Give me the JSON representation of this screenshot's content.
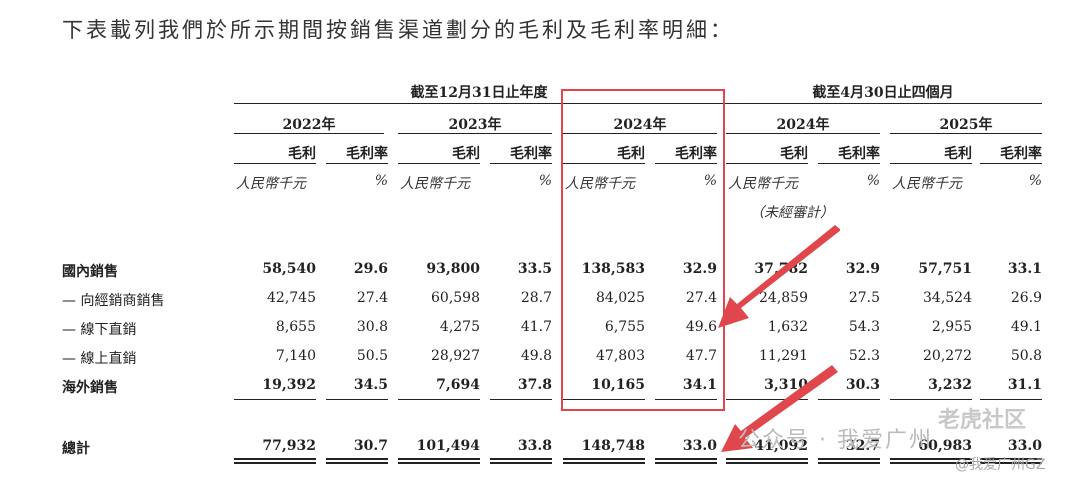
{
  "intro_text": "下表載列我們於所示期間按銷售渠道劃分的毛利及毛利率明細：",
  "group_headers": {
    "annual": "截至12月31日止年度",
    "four_month": "截至4月30日止四個月"
  },
  "years": [
    "2022年",
    "2023年",
    "2024年",
    "2024年",
    "2025年"
  ],
  "col_headers": {
    "profit": "毛利",
    "margin": "毛利率"
  },
  "units": {
    "currency": "人民幣千元",
    "percent": "%"
  },
  "unaudited_note": "（未經審計）",
  "rows": [
    {
      "label": "國內銷售",
      "values": [
        "58,540",
        "29.6",
        "93,800",
        "33.5",
        "138,583",
        "32.9",
        "37,782",
        "32.9",
        "57,751",
        "33.1"
      ]
    },
    {
      "label": "— 向經銷商銷售",
      "values": [
        "42,745",
        "27.4",
        "60,598",
        "28.7",
        "84,025",
        "27.4",
        "24,859",
        "27.5",
        "34,524",
        "26.9"
      ]
    },
    {
      "label": "— 線下直銷",
      "values": [
        "8,655",
        "30.8",
        "4,275",
        "41.7",
        "6,755",
        "49.6",
        "1,632",
        "54.3",
        "2,955",
        "49.1"
      ]
    },
    {
      "label": "— 線上直銷",
      "values": [
        "7,140",
        "50.5",
        "28,927",
        "49.8",
        "47,803",
        "47.7",
        "11,291",
        "52.3",
        "20,272",
        "50.8"
      ]
    },
    {
      "label": "海外銷售",
      "values": [
        "19,392",
        "34.5",
        "7,694",
        "37.8",
        "10,165",
        "34.1",
        "3,310",
        "30.3",
        "3,232",
        "31.1"
      ]
    }
  ],
  "total": {
    "label": "總計",
    "values": [
      "77,932",
      "30.7",
      "101,494",
      "33.8",
      "148,748",
      "33.0",
      "41,092",
      "32.7",
      "60,983",
      "33.0"
    ]
  },
  "watermarks": {
    "wechat": "公众号 · 我爱广州",
    "community": "老虎社区",
    "handle": "@我爱广州GZ"
  },
  "colors": {
    "highlight": "#e0474c",
    "text": "#222222"
  }
}
